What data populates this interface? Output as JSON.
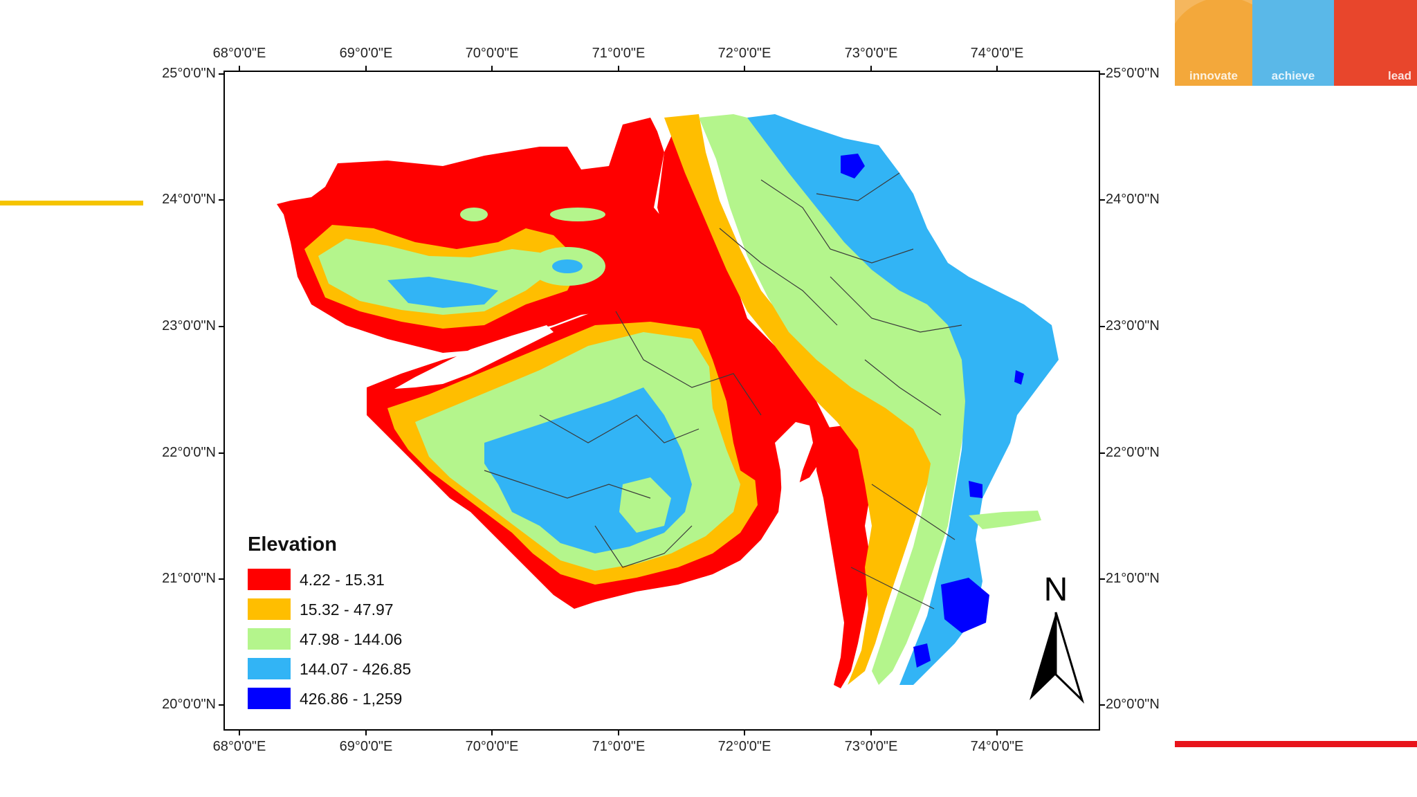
{
  "branding": {
    "segments": [
      {
        "label": "innovate",
        "color": "#f3a83b"
      },
      {
        "label": "achieve",
        "color": "#5ab8e8"
      },
      {
        "label": "lead",
        "color": "#e8462c"
      }
    ]
  },
  "map": {
    "lon_labels": [
      "68°0'0\"E",
      "69°0'0\"E",
      "70°0'0\"E",
      "71°0'0\"E",
      "72°0'0\"E",
      "73°0'0\"E",
      "74°0'0\"E"
    ],
    "lat_labels": [
      "25°0'0\"N",
      "24°0'0\"N",
      "23°0'0\"N",
      "22°0'0\"N",
      "21°0'0\"N",
      "20°0'0\"N"
    ],
    "north_label": "N",
    "legend": {
      "title": "Elevation",
      "classes": [
        {
          "label": "4.22 - 15.31",
          "color": "#ff0000"
        },
        {
          "label": "15.32 - 47.97",
          "color": "#ffbe00"
        },
        {
          "label": "47.98 - 144.06",
          "color": "#b4f58c"
        },
        {
          "label": "144.07 - 426.85",
          "color": "#32b4f5"
        },
        {
          "label": "426.86 - 1,259",
          "color": "#0000ff"
        }
      ]
    }
  }
}
